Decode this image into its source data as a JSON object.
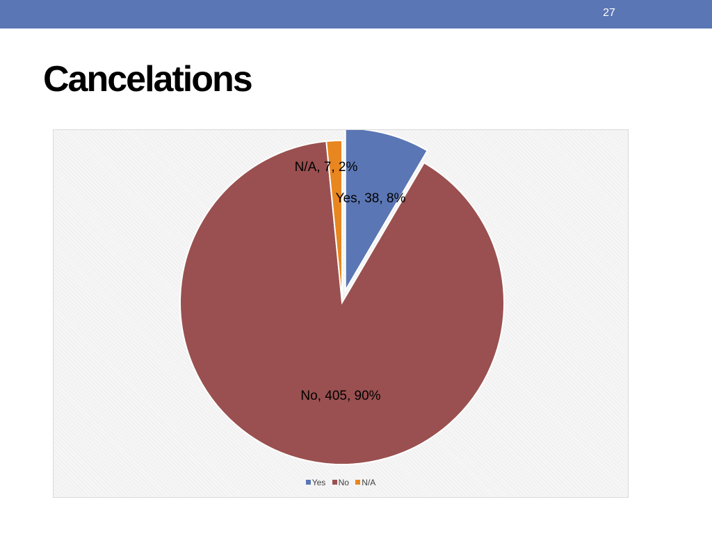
{
  "slide": {
    "number": "27",
    "title": "Cancelations"
  },
  "colors": {
    "top_bar": "#5b76b4",
    "yes": "#5b76b4",
    "no": "#9a5050",
    "na": "#e8861f"
  },
  "chart_data": {
    "type": "pie",
    "title": "",
    "categories": [
      "Yes",
      "No",
      "N/A"
    ],
    "values": [
      38,
      405,
      7
    ],
    "percent_labels": [
      "8%",
      "90%",
      "2%"
    ],
    "data_labels": [
      "Yes, 38, 8%",
      "No, 405, 90%",
      "N/A, 7, 2%"
    ],
    "series_colors": [
      "#5b76b4",
      "#9a5050",
      "#e8861f"
    ],
    "exploded": [
      "Yes"
    ],
    "legend": {
      "position": "bottom",
      "entries": [
        "Yes",
        "No",
        "N/A"
      ]
    }
  }
}
